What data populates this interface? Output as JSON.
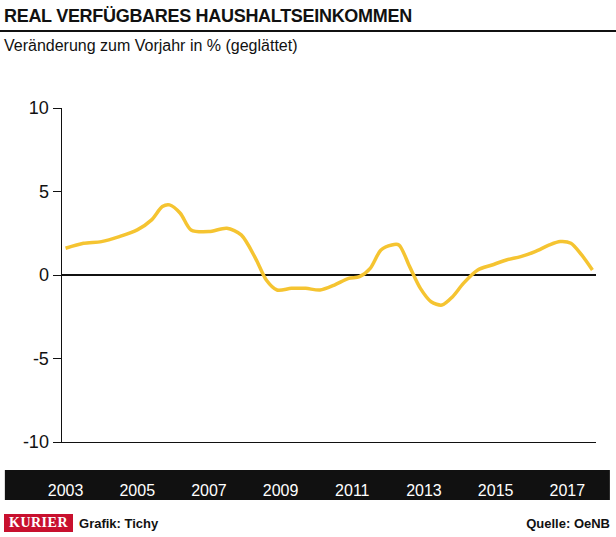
{
  "chart_data": {
    "type": "line",
    "title": "REAL VERFÜGBARES HAUSHALTSEINKOMMEN",
    "subtitle": "Veränderung zum Vorjahr in % (geglättet)",
    "x": [
      2003.0,
      2003.5,
      2004.0,
      2004.5,
      2005.0,
      2005.4,
      2005.7,
      2005.9,
      2006.2,
      2006.5,
      2007.0,
      2007.5,
      2007.9,
      2008.3,
      2008.6,
      2008.9,
      2009.3,
      2009.7,
      2010.1,
      2010.5,
      2010.9,
      2011.2,
      2011.5,
      2011.8,
      2012.1,
      2012.3,
      2012.6,
      2012.9,
      2013.2,
      2013.5,
      2013.8,
      2014.1,
      2014.5,
      2014.9,
      2015.3,
      2015.7,
      2016.1,
      2016.5,
      2016.8,
      2017.1,
      2017.4,
      2017.7
    ],
    "values": [
      1.6,
      1.9,
      2.0,
      2.3,
      2.7,
      3.3,
      4.1,
      4.2,
      3.7,
      2.7,
      2.6,
      2.8,
      2.4,
      1.0,
      -0.3,
      -0.9,
      -0.8,
      -0.8,
      -0.9,
      -0.6,
      -0.2,
      -0.1,
      0.4,
      1.5,
      1.8,
      1.8,
      0.5,
      -0.8,
      -1.6,
      -1.8,
      -1.3,
      -0.5,
      0.3,
      0.6,
      0.9,
      1.1,
      1.4,
      1.8,
      2.0,
      1.9,
      1.2,
      0.3
    ],
    "color": "#f5c431",
    "line_style": "solid",
    "xlim": [
      2002.9,
      2017.8
    ],
    "xticks": [
      2003,
      2005,
      2007,
      2009,
      2011,
      2013,
      2015,
      2017
    ],
    "ylim": [
      -10,
      10
    ],
    "yticks": [
      -10,
      -5,
      0,
      5,
      10
    ],
    "grid": false,
    "logo": "KURIER",
    "credit": "Grafik: Tichy",
    "source": "Quelle: OeNB"
  }
}
